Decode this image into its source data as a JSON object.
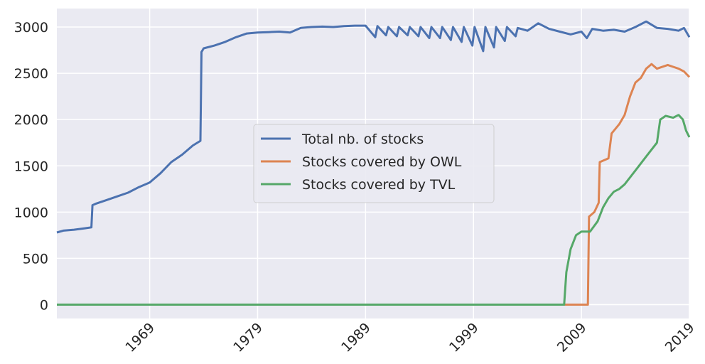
{
  "chart_data": {
    "type": "line",
    "xlim": [
      1960.4,
      2019
    ],
    "xticks": [
      1969,
      1979,
      1989,
      1999,
      2009,
      2019
    ],
    "ylim": [
      -150,
      3200
    ],
    "yticks": [
      0,
      500,
      1000,
      1500,
      2000,
      2500,
      3000
    ],
    "grid": true,
    "legend": "center",
    "series": [
      {
        "name": "Total nb. of stocks",
        "color": "#4c72b0",
        "x": [
          1960.4,
          1961,
          1962,
          1963,
          1963.6,
          1963.7,
          1964,
          1965,
          1966,
          1967,
          1968,
          1969,
          1970,
          1971,
          1972,
          1973,
          1973.7,
          1973.8,
          1974,
          1975,
          1976,
          1977,
          1978,
          1979,
          1980,
          1981,
          1982,
          1983,
          1984,
          1985,
          1986,
          1987,
          1988,
          1989,
          1989.9,
          1990.1,
          1990.9,
          1991.1,
          1991.9,
          1992.1,
          1992.9,
          1993.1,
          1993.9,
          1994.1,
          1994.9,
          1995.1,
          1995.9,
          1996.1,
          1996.9,
          1997.1,
          1997.9,
          1998.1,
          1998.9,
          1999.1,
          1999.9,
          2000.1,
          2000.9,
          2001.1,
          2001.9,
          2002.1,
          2002.9,
          2003.1,
          2004,
          2005,
          2006,
          2007,
          2008,
          2009,
          2009.5,
          2010,
          2011,
          2012,
          2013,
          2014,
          2015,
          2016,
          2017,
          2018,
          2018.5,
          2019
        ],
        "values": [
          780,
          800,
          810,
          825,
          835,
          1075,
          1090,
          1130,
          1170,
          1210,
          1270,
          1320,
          1420,
          1540,
          1620,
          1720,
          1770,
          2730,
          2770,
          2800,
          2840,
          2890,
          2930,
          2940,
          2945,
          2950,
          2940,
          2990,
          3000,
          3005,
          3000,
          3010,
          3015,
          3015,
          2890,
          3010,
          2910,
          3000,
          2900,
          3000,
          2910,
          3000,
          2900,
          3000,
          2880,
          3000,
          2880,
          3000,
          2860,
          3000,
          2840,
          3000,
          2800,
          3000,
          2740,
          3000,
          2780,
          3000,
          2850,
          3000,
          2900,
          2990,
          2960,
          3040,
          2980,
          2950,
          2920,
          2950,
          2880,
          2980,
          2960,
          2970,
          2950,
          3000,
          3060,
          2990,
          2980,
          2960,
          2990,
          2890
        ]
      },
      {
        "name": "Stocks covered by OWL",
        "color": "#dd8452",
        "x": [
          1960.4,
          2009.6,
          2009.7,
          2010.2,
          2010.6,
          2010.7,
          2011.5,
          2011.8,
          2012.5,
          2013,
          2013.5,
          2014,
          2014.5,
          2015,
          2015.5,
          2016,
          2017,
          2017.5,
          2018,
          2018.5,
          2019
        ],
        "values": [
          0,
          0,
          950,
          1000,
          1100,
          1540,
          1580,
          1850,
          1950,
          2050,
          2250,
          2400,
          2450,
          2550,
          2600,
          2550,
          2590,
          2570,
          2550,
          2520,
          2460
        ]
      },
      {
        "name": "Stocks covered by TVL",
        "color": "#55a868",
        "x": [
          1960.4,
          2007.4,
          2007.6,
          2008,
          2008.5,
          2009,
          2009.8,
          2010.5,
          2011,
          2011.5,
          2012,
          2012.5,
          2013,
          2014,
          2015,
          2016,
          2016.3,
          2016.8,
          2017.5,
          2018,
          2018.4,
          2018.7,
          2019
        ],
        "values": [
          0,
          0,
          350,
          600,
          750,
          790,
          790,
          900,
          1050,
          1150,
          1220,
          1250,
          1300,
          1450,
          1600,
          1750,
          2000,
          2040,
          2020,
          2050,
          2000,
          1880,
          1810
        ]
      }
    ]
  }
}
